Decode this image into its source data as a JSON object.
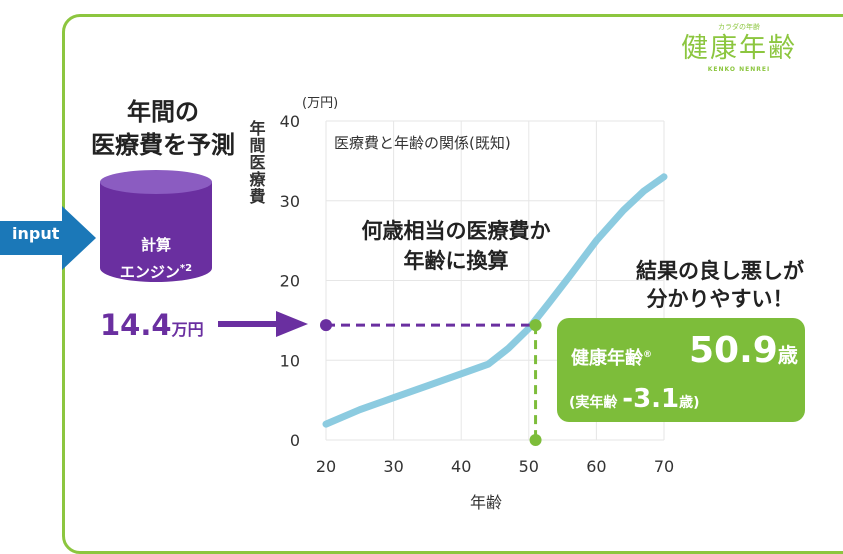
{
  "input_label": "input",
  "heading": {
    "line1": "年間の",
    "line2": "医療費を予測"
  },
  "engine": {
    "line1": "計算",
    "line2": "エンジン",
    "note": "*2"
  },
  "cost": {
    "value": "14.4",
    "unit": "万円"
  },
  "logo": {
    "small": "カラダの年齢",
    "big": "健康年齢",
    "sub": "KENKO NENREI"
  },
  "callout_center": {
    "line1": "何歳相当の医療費か",
    "line2": "年齢に換算"
  },
  "callout_right": {
    "line1": "結果の良し悪しが",
    "line2": "分かりやすい！"
  },
  "result": {
    "label": "健康年齢",
    "reg": "®",
    "value": "50.9",
    "value_unit": "歳",
    "real_prefix": "(実年齢",
    "real_value": "-3.1",
    "real_suffix": "歳)"
  },
  "colors": {
    "green": "#8cc63f",
    "purple": "#6a2fa0",
    "blue_arrow": "#1b78b8",
    "curve": "#8ccbe0"
  },
  "chart_data": {
    "type": "line",
    "title": "医療費と年齢の関係(既知)",
    "xlabel": "年齢",
    "ylabel": "年間医療費",
    "yunit": "(万円)",
    "xlim": [
      20,
      70
    ],
    "ylim": [
      0,
      40
    ],
    "xticks": [
      20,
      30,
      40,
      50,
      60,
      70
    ],
    "yticks": [
      0,
      10,
      20,
      30,
      40
    ],
    "series": [
      {
        "x": [
          20,
          25,
          30,
          35,
          40,
          44,
          47,
          50,
          53,
          56,
          60,
          64,
          67,
          70
        ],
        "y": [
          2.0,
          3.8,
          5.3,
          6.8,
          8.3,
          9.5,
          11.5,
          14.0,
          17.2,
          20.5,
          25.0,
          28.8,
          31.2,
          33.0
        ]
      }
    ],
    "marker": {
      "x": 51.0,
      "y": 14.4
    }
  }
}
